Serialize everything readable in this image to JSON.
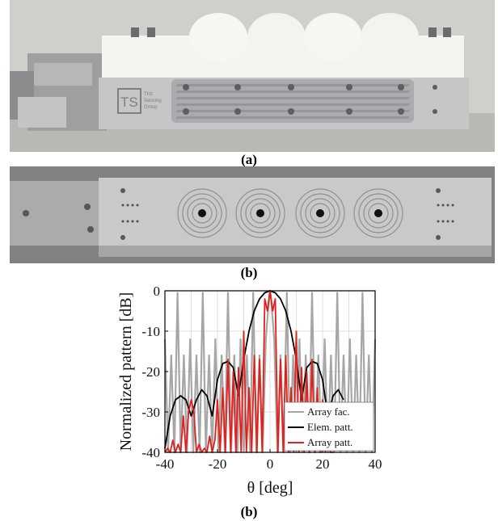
{
  "figure": {
    "caption_a": "(a)",
    "caption_b": "(b)",
    "caption_c": "(b)",
    "logo_text": "THz Sensing Group",
    "logo_initials": "TS"
  },
  "chart_data": {
    "type": "line",
    "xlabel": "θ [deg]",
    "ylabel": "Normalized pattern [dB]",
    "xlim": [
      -40,
      40
    ],
    "ylim": [
      -40,
      0
    ],
    "xticks": [
      "-40",
      "-20",
      "0",
      "20",
      "40"
    ],
    "yticks": [
      "0",
      "-10",
      "-20",
      "-30",
      "-40"
    ],
    "grid": true,
    "legend_position": "bottom-right",
    "series": [
      {
        "name": "Array fac.",
        "color": "#a6a6a6",
        "x": [
          -40,
          -38.8,
          -37.6,
          -36.4,
          -35.2,
          -34,
          -32.8,
          -31.6,
          -30.4,
          -29.2,
          -28,
          -26.8,
          -25.6,
          -24.4,
          -23.2,
          -22,
          -20.8,
          -19.6,
          -18.4,
          -17.2,
          -16,
          -14.8,
          -13.6,
          -12.4,
          -11.2,
          -10,
          -8.8,
          -7.6,
          -6.4,
          -5.2,
          -4,
          -2.8,
          -1.6,
          -0.4,
          0,
          0.4,
          1.6,
          2.8,
          4,
          5.2,
          6.4,
          7.6,
          8.8,
          10,
          11.2,
          12.4,
          13.6,
          14.8,
          16,
          17.2,
          18.4,
          19.6,
          20.8,
          22,
          23.2,
          24.4,
          25.6,
          26.8,
          28,
          29.2,
          30.4,
          31.6,
          32.8,
          34,
          35.2,
          36.4,
          37.6,
          38.8,
          40
        ],
        "y": [
          -12,
          -40,
          -16,
          -40,
          -0.5,
          -40,
          -16,
          -40,
          -12,
          -40,
          -16,
          -40,
          -0.5,
          -40,
          -16,
          -40,
          -12,
          -40,
          -16,
          -40,
          -0.5,
          -40,
          -16,
          -40,
          -12,
          -40,
          -16,
          -40,
          -0.5,
          -40,
          -16,
          -40,
          -12,
          -2,
          0,
          -2,
          -12,
          -40,
          -16,
          -40,
          -0.5,
          -40,
          -16,
          -40,
          -12,
          -40,
          -16,
          -40,
          -0.5,
          -40,
          -16,
          -40,
          -12,
          -40,
          -16,
          -40,
          -0.5,
          -40,
          -16,
          -40,
          -12,
          -40,
          -16,
          -40,
          -0.5,
          -40,
          -16,
          -40,
          -12
        ]
      },
      {
        "name": "Elem. patt.",
        "color": "#000000",
        "x": [
          -40,
          -38,
          -36,
          -34,
          -32,
          -30,
          -28,
          -26,
          -24,
          -22,
          -20,
          -18,
          -16,
          -14,
          -12,
          -10,
          -8,
          -6,
          -4,
          -2,
          0,
          2,
          4,
          6,
          8,
          10,
          12,
          14,
          16,
          18,
          20,
          22,
          24,
          26,
          28
        ],
        "y": [
          -39,
          -31,
          -27,
          -26,
          -27,
          -31,
          -27,
          -24.5,
          -26,
          -31,
          -22,
          -18,
          -17.5,
          -19,
          -26,
          -17,
          -10,
          -5,
          -2,
          -0.5,
          0,
          -0.5,
          -2,
          -5,
          -10,
          -17,
          -27,
          -19,
          -17.5,
          -18,
          -22,
          -31,
          -26,
          -24.5,
          -27
        ]
      },
      {
        "name": "Array patt.",
        "color": "#e0201b",
        "x": [
          -40,
          -39,
          -38,
          -37,
          -36,
          -35,
          -34,
          -33,
          -32,
          -31,
          -30,
          -29,
          -28,
          -27,
          -26,
          -25,
          -24,
          -23,
          -22,
          -21,
          -20,
          -19,
          -18,
          -17,
          -16,
          -15,
          -14,
          -13,
          -12,
          -11,
          -10,
          -9,
          -8,
          -7,
          -6,
          -5,
          -4,
          -3,
          -2,
          -1,
          0,
          1,
          2,
          3,
          4,
          5,
          6,
          7,
          8,
          9,
          10,
          11,
          12,
          13,
          14,
          15,
          16,
          17,
          18,
          19,
          20,
          21,
          22,
          23,
          24
        ],
        "y": [
          -40,
          -39,
          -40,
          -37,
          -40,
          -38,
          -40,
          -31,
          -40,
          -30,
          -27,
          -30,
          -40,
          -38,
          -40,
          -39,
          -40,
          -36,
          -40,
          -37,
          -27,
          -40,
          -24,
          -40,
          -17,
          -40,
          -20,
          -40,
          -19,
          -40,
          -10,
          -40,
          -24,
          -40,
          -16,
          -40,
          -17,
          -40,
          -2,
          -5,
          0,
          -5,
          -2,
          -40,
          -17,
          -40,
          -16,
          -40,
          -24,
          -40,
          -10,
          -40,
          -19,
          -40,
          -20,
          -40,
          -17,
          -40,
          -24,
          -40,
          -27,
          -40,
          -36,
          -40,
          -40
        ]
      }
    ]
  }
}
